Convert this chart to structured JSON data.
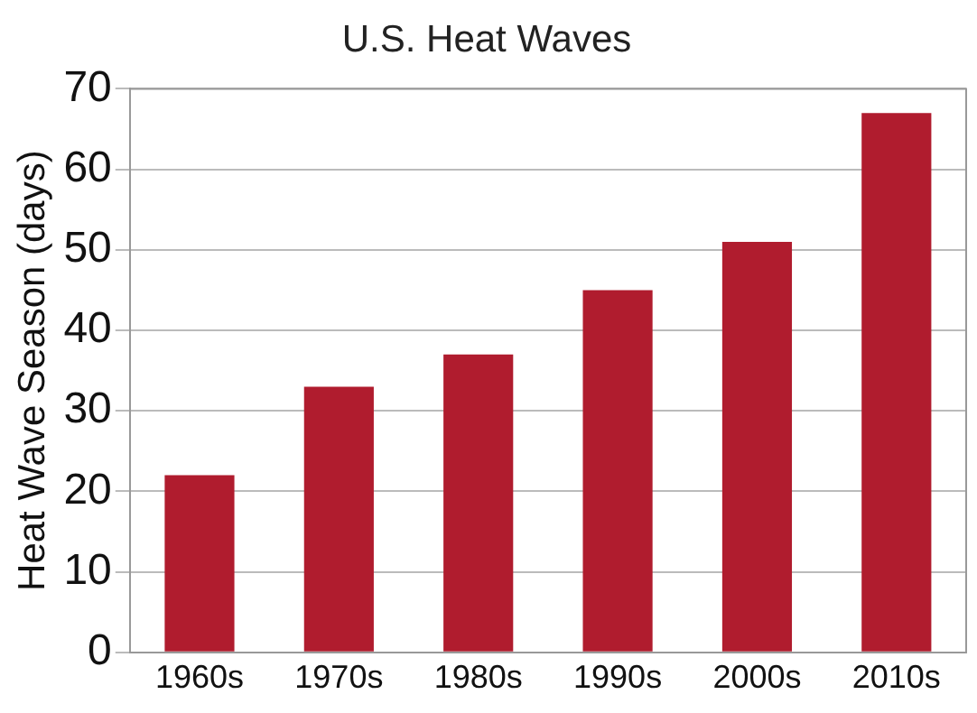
{
  "chart_data": {
    "type": "bar",
    "title": "U.S. Heat Waves",
    "ylabel": "Heat Wave Season (days)",
    "categories": [
      "1960s",
      "1970s",
      "1980s",
      "1990s",
      "2000s",
      "2010s"
    ],
    "values": [
      22,
      33,
      37,
      45,
      51,
      67
    ],
    "color": "#b01c2e",
    "ylim": [
      0,
      70
    ],
    "yticks": [
      0,
      10,
      20,
      30,
      40,
      50,
      60,
      70
    ],
    "grid": "y",
    "legend": false
  }
}
